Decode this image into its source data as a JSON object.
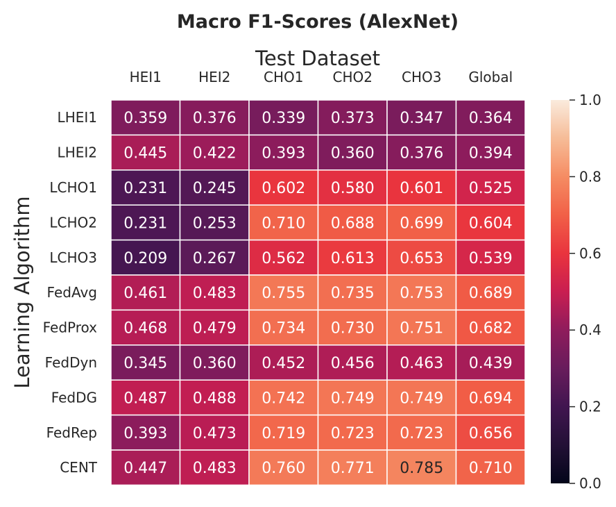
{
  "chart_data": {
    "type": "heatmap",
    "title": "Macro F1-Scores (AlexNet)",
    "xlabel": "Test Dataset",
    "ylabel": "Learning Algorithm",
    "x_categories": [
      "HEI1",
      "HEI2",
      "CHO1",
      "CHO2",
      "CHO3",
      "Global"
    ],
    "y_categories": [
      "LHEI1",
      "LHEI2",
      "LCHO1",
      "LCHO2",
      "LCHO3",
      "FedAvg",
      "FedProx",
      "FedDyn",
      "FedDG",
      "FedRep",
      "CENT"
    ],
    "values": [
      [
        0.359,
        0.376,
        0.339,
        0.373,
        0.347,
        0.364
      ],
      [
        0.445,
        0.422,
        0.393,
        0.36,
        0.376,
        0.394
      ],
      [
        0.231,
        0.245,
        0.602,
        0.58,
        0.601,
        0.525
      ],
      [
        0.231,
        0.253,
        0.71,
        0.688,
        0.699,
        0.604
      ],
      [
        0.209,
        0.267,
        0.562,
        0.613,
        0.653,
        0.539
      ],
      [
        0.461,
        0.483,
        0.755,
        0.735,
        0.753,
        0.689
      ],
      [
        0.468,
        0.479,
        0.734,
        0.73,
        0.751,
        0.682
      ],
      [
        0.345,
        0.36,
        0.452,
        0.456,
        0.463,
        0.439
      ],
      [
        0.487,
        0.488,
        0.742,
        0.749,
        0.749,
        0.694
      ],
      [
        0.393,
        0.473,
        0.719,
        0.723,
        0.723,
        0.656
      ],
      [
        0.447,
        0.483,
        0.76,
        0.771,
        0.785,
        0.71
      ]
    ],
    "colorbar": {
      "range": [
        0.0,
        1.0
      ],
      "ticks": [
        "0.0",
        "0.2",
        "0.4",
        "0.6",
        "0.8",
        "1.0"
      ],
      "colormap": "rocket"
    }
  }
}
